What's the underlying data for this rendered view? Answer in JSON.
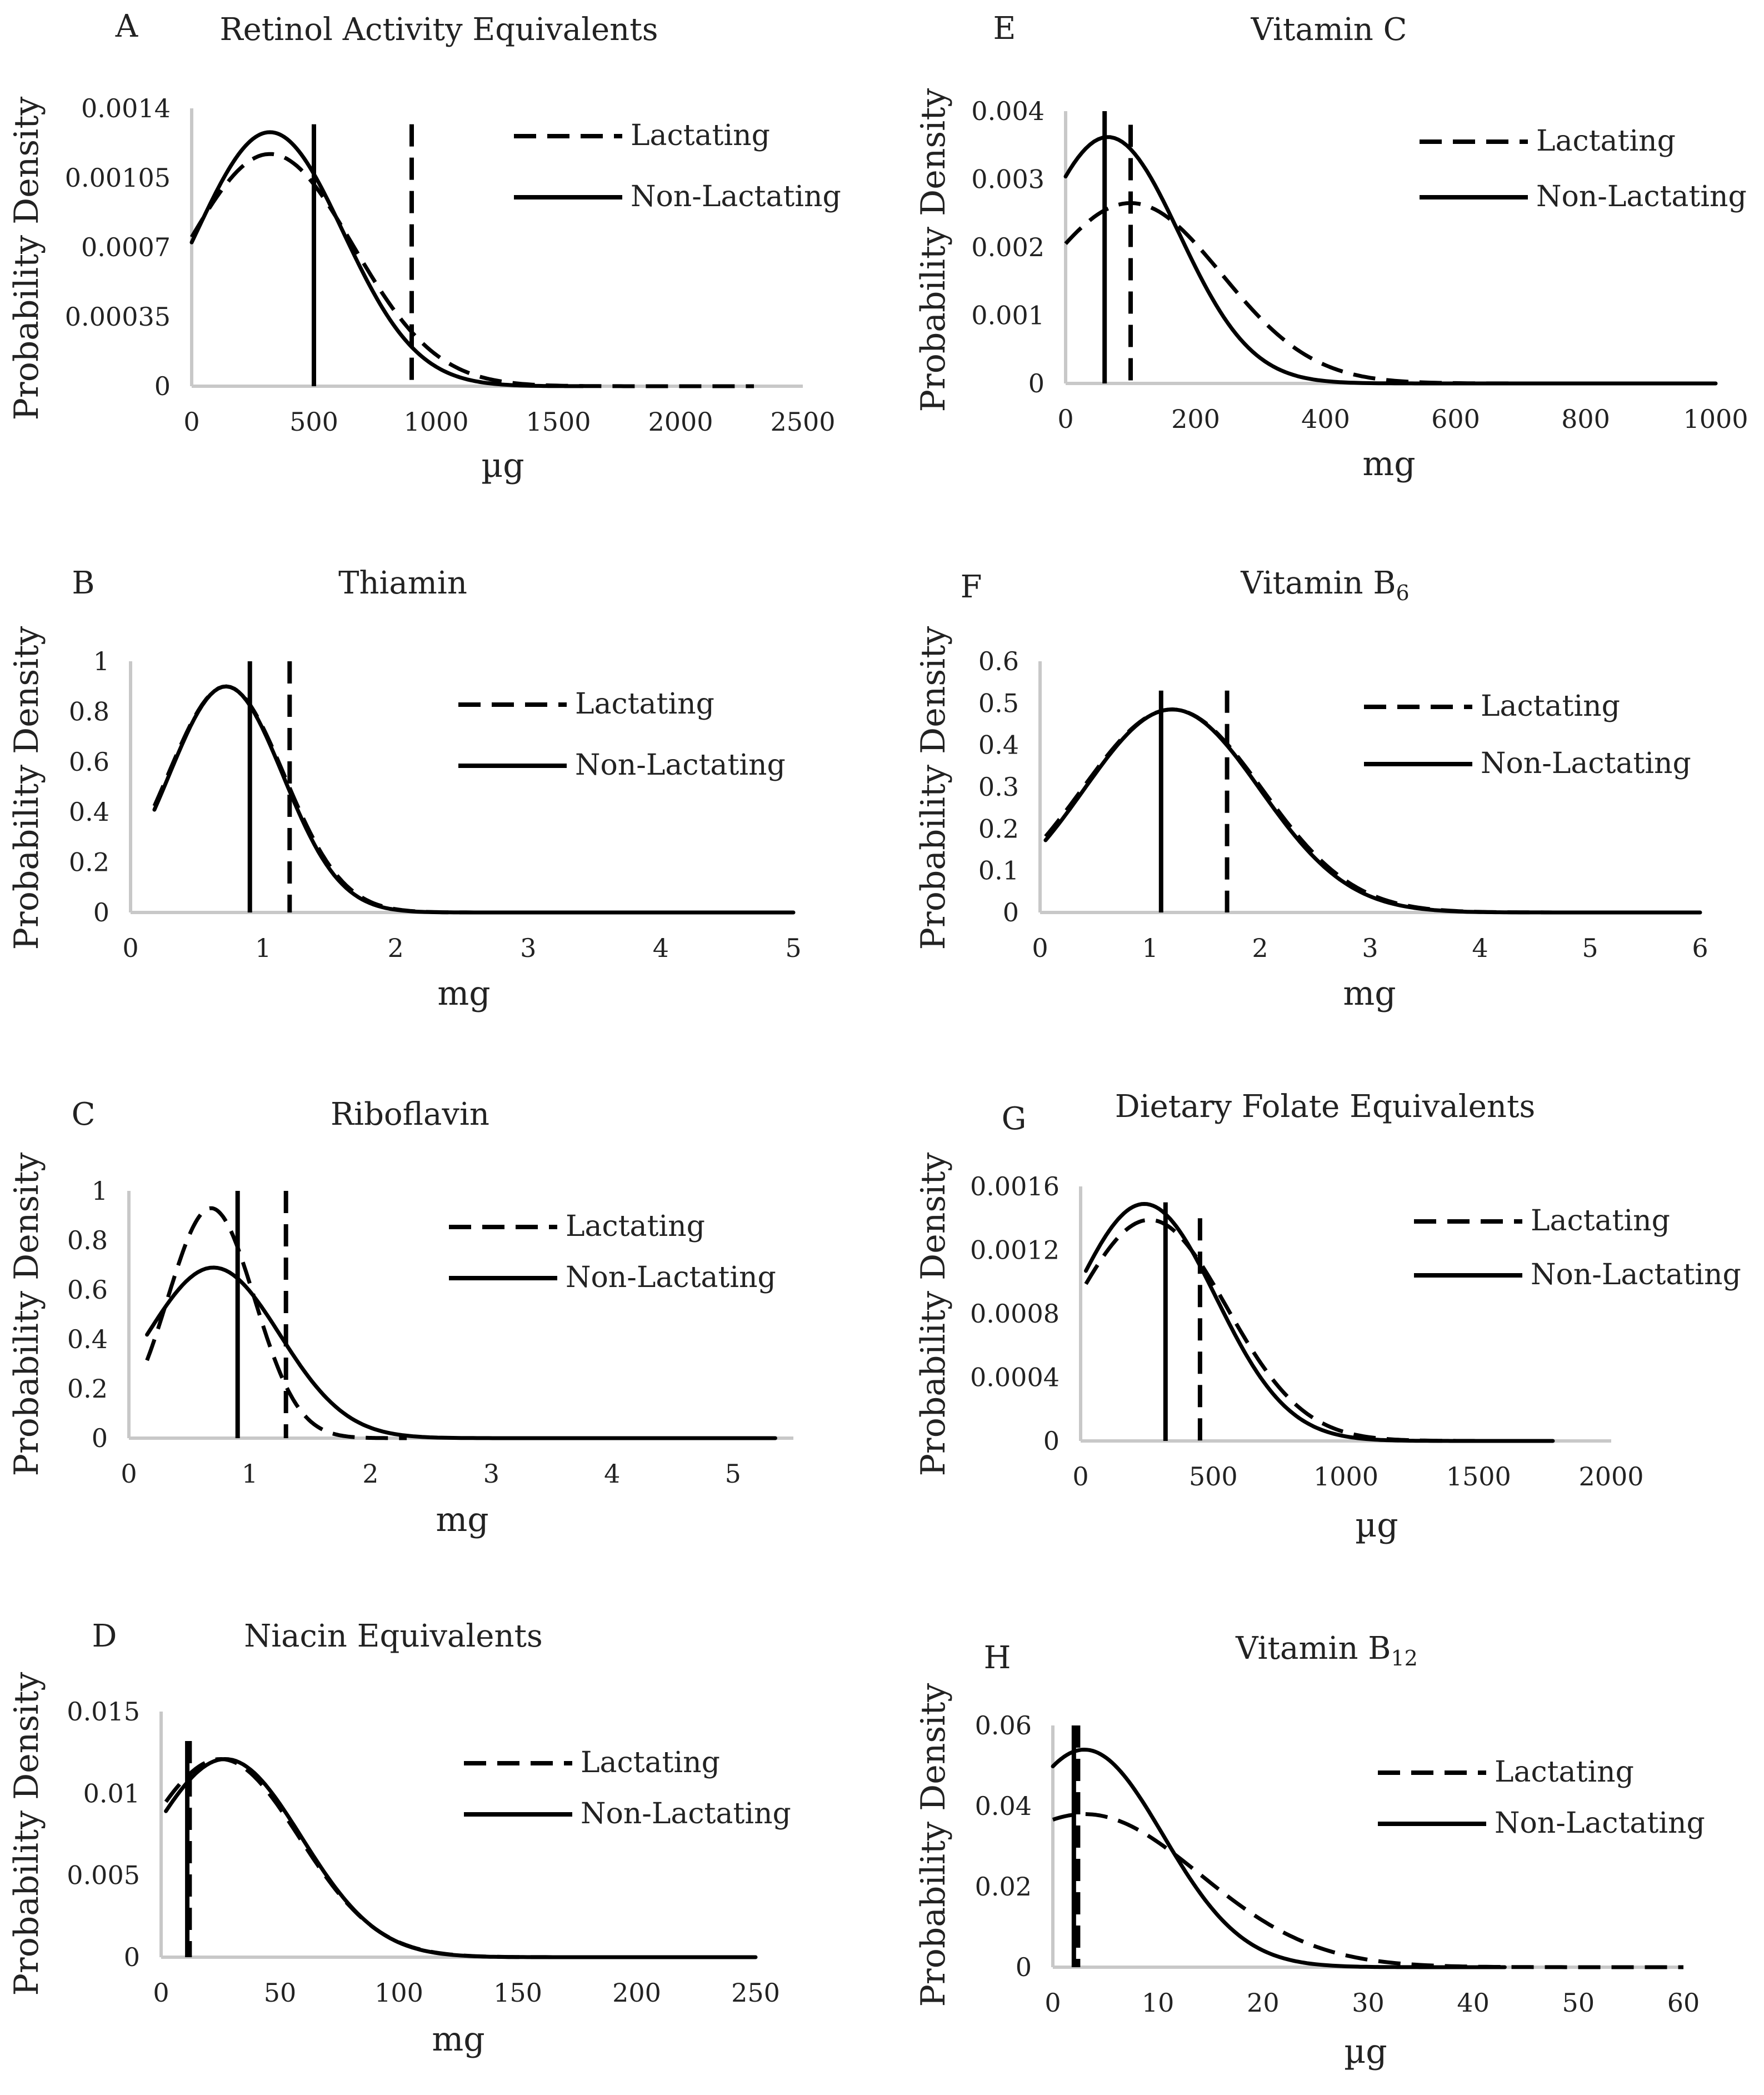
{
  "ylabel": "Probability Density",
  "legend": {
    "lactating": "Lactating",
    "non_lactating": "Non-Lactating"
  },
  "chart_data": [
    {
      "letter": "A",
      "title": "Retinol Activity Equivalents",
      "title_sub": "",
      "type": "line",
      "xlabel": "µg",
      "ylabel": "Probability Density",
      "xlim": [
        0,
        2500
      ],
      "ylim": [
        0,
        0.0014
      ],
      "xticks": [
        0,
        500,
        1000,
        1500,
        2000,
        2500
      ],
      "xtick_labels": [
        "0",
        "500",
        "1000",
        "1500",
        "2000",
        "2500"
      ],
      "yticks": [
        0,
        0.00035,
        0.0007,
        0.00105,
        0.0014
      ],
      "ytick_labels": [
        "0",
        "0.00035",
        "0.0007",
        "0.00105",
        "0.0014"
      ],
      "series": [
        {
          "name": "Lactating",
          "style": "dashed",
          "mu": 320,
          "sigma": 340,
          "peak": 0.00117,
          "x_range": [
            0,
            2300
          ]
        },
        {
          "name": "Non-Lactating",
          "style": "solid",
          "mu": 320,
          "sigma": 300,
          "peak": 0.00128,
          "x_range": [
            0,
            1600
          ]
        }
      ],
      "vlines": [
        {
          "series": "Lactating",
          "style": "dashed",
          "x": 900,
          "y_top": 0.00132
        },
        {
          "series": "Non-Lactating",
          "style": "solid",
          "x": 500,
          "y_top": 0.00132
        }
      ]
    },
    {
      "letter": "B",
      "title": "Thiamin",
      "title_sub": "",
      "type": "line",
      "xlabel": "mg",
      "ylabel": "Probability Density",
      "xlim": [
        0,
        5
      ],
      "ylim": [
        0,
        1
      ],
      "xticks": [
        0,
        1,
        2,
        3,
        4,
        5
      ],
      "xtick_labels": [
        "0",
        "1",
        "2",
        "3",
        "4",
        "5"
      ],
      "yticks": [
        0,
        0.2,
        0.4,
        0.6,
        0.8,
        1
      ],
      "ytick_labels": [
        "0",
        "0.2",
        "0.4",
        "0.6",
        "0.8",
        "1"
      ],
      "series": [
        {
          "name": "Lactating",
          "style": "dashed",
          "mu": 0.72,
          "sigma": 0.44,
          "peak": 0.9,
          "x_range": [
            0.18,
            5
          ]
        },
        {
          "name": "Non-Lactating",
          "style": "solid",
          "mu": 0.72,
          "sigma": 0.43,
          "peak": 0.9,
          "x_range": [
            0.18,
            5
          ]
        }
      ],
      "vlines": [
        {
          "series": "Lactating",
          "style": "dashed",
          "x": 1.2,
          "y_top": 1.0
        },
        {
          "series": "Non-Lactating",
          "style": "solid",
          "x": 0.9,
          "y_top": 1.0
        }
      ]
    },
    {
      "letter": "C",
      "title": "Riboflavin",
      "title_sub": "",
      "type": "line",
      "xlabel": "mg",
      "ylabel": "Probability Density",
      "xlim": [
        0,
        5.5
      ],
      "ylim": [
        0,
        1
      ],
      "xticks": [
        0,
        1,
        2,
        3,
        4,
        5
      ],
      "xtick_labels": [
        "0",
        "1",
        "2",
        "3",
        "4",
        "5"
      ],
      "yticks": [
        0,
        0.2,
        0.4,
        0.6,
        0.8,
        1
      ],
      "ytick_labels": [
        "0",
        "0.2",
        "0.4",
        "0.6",
        "0.8",
        "1"
      ],
      "series": [
        {
          "name": "Lactating",
          "style": "dashed",
          "mu": 0.68,
          "sigma": 0.36,
          "peak": 0.93,
          "x_range": [
            0.15,
            2.3
          ]
        },
        {
          "name": "Non-Lactating",
          "style": "solid",
          "mu": 0.7,
          "sigma": 0.55,
          "peak": 0.69,
          "x_range": [
            0.15,
            5.35
          ]
        }
      ],
      "vlines": [
        {
          "series": "Lactating",
          "style": "dashed",
          "x": 1.3,
          "y_top": 1.0
        },
        {
          "series": "Non-Lactating",
          "style": "solid",
          "x": 0.9,
          "y_top": 1.0
        }
      ]
    },
    {
      "letter": "D",
      "title": "Niacin Equivalents",
      "title_sub": "",
      "type": "line",
      "xlabel": "mg",
      "ylabel": "Probability Density",
      "xlim": [
        0,
        250
      ],
      "ylim": [
        0,
        0.015
      ],
      "xticks": [
        0,
        50,
        100,
        150,
        200,
        250
      ],
      "xtick_labels": [
        "0",
        "50",
        "100",
        "150",
        "200",
        "250"
      ],
      "yticks": [
        0,
        0.005,
        0.01,
        0.015
      ],
      "ytick_labels": [
        "0",
        "0.005",
        "0.01",
        "0.015"
      ],
      "series": [
        {
          "name": "Lactating",
          "style": "dashed",
          "mu": 25,
          "sigma": 33,
          "peak": 0.0121,
          "x_range": [
            2,
            250
          ]
        },
        {
          "name": "Non-Lactating",
          "style": "solid",
          "mu": 27,
          "sigma": 32,
          "peak": 0.0121,
          "x_range": [
            2,
            250
          ]
        }
      ],
      "vlines": [
        {
          "series": "Lactating",
          "style": "dashed",
          "x": 12,
          "y_top": 0.0132
        },
        {
          "series": "Non-Lactating",
          "style": "solid",
          "x": 11,
          "y_top": 0.0132
        }
      ]
    },
    {
      "letter": "E",
      "title": "Vitamin C",
      "title_sub": "",
      "type": "line",
      "xlabel": "mg",
      "ylabel": "Probability Density",
      "xlim": [
        0,
        1000
      ],
      "ylim": [
        0,
        0.004
      ],
      "xticks": [
        0,
        200,
        400,
        600,
        800,
        1000
      ],
      "xtick_labels": [
        "0",
        "200",
        "400",
        "600",
        "800",
        "1000"
      ],
      "yticks": [
        0,
        0.001,
        0.002,
        0.003,
        0.004
      ],
      "ytick_labels": [
        "0",
        "0.001",
        "0.002",
        "0.003",
        "0.004"
      ],
      "series": [
        {
          "name": "Lactating",
          "style": "dashed",
          "mu": 100,
          "sigma": 140,
          "peak": 0.00265,
          "x_range": [
            0,
            1000
          ]
        },
        {
          "name": "Non-Lactating",
          "style": "solid",
          "mu": 65,
          "sigma": 110,
          "peak": 0.00362,
          "x_range": [
            0,
            1000
          ]
        }
      ],
      "vlines": [
        {
          "series": "Lactating",
          "style": "dashed",
          "x": 100,
          "y_top": 0.0038
        },
        {
          "series": "Non-Lactating",
          "style": "solid",
          "x": 60,
          "y_top": 0.004
        }
      ]
    },
    {
      "letter": "F",
      "title": "Vitamin B",
      "title_sub": "6",
      "type": "line",
      "xlabel": "mg",
      "ylabel": "Probability Density",
      "xlim": [
        0,
        6
      ],
      "ylim": [
        0,
        0.6
      ],
      "xticks": [
        0,
        1,
        2,
        3,
        4,
        5,
        6
      ],
      "xtick_labels": [
        "0",
        "1",
        "2",
        "3",
        "4",
        "5",
        "6"
      ],
      "yticks": [
        0,
        0.1,
        0.2,
        0.3,
        0.4,
        0.5,
        0.6
      ],
      "ytick_labels": [
        "0",
        "0.1",
        "0.2",
        "0.3",
        "0.4",
        "0.5",
        "0.6"
      ],
      "series": [
        {
          "name": "Lactating",
          "style": "dashed",
          "mu": 1.2,
          "sigma": 0.82,
          "peak": 0.485,
          "x_range": [
            0.05,
            6
          ]
        },
        {
          "name": "Non-Lactating",
          "style": "solid",
          "mu": 1.2,
          "sigma": 0.8,
          "peak": 0.485,
          "x_range": [
            0.05,
            6
          ]
        }
      ],
      "vlines": [
        {
          "series": "Lactating",
          "style": "dashed",
          "x": 1.7,
          "y_top": 0.53
        },
        {
          "series": "Non-Lactating",
          "style": "solid",
          "x": 1.1,
          "y_top": 0.53
        }
      ]
    },
    {
      "letter": "G",
      "title": "Dietary Folate Equivalents",
      "title_sub": "",
      "type": "line",
      "xlabel": "µg",
      "ylabel": "Probability Density",
      "xlim": [
        0,
        2000
      ],
      "ylim": [
        0,
        0.0016
      ],
      "xticks": [
        0,
        500,
        1000,
        1500,
        2000
      ],
      "xtick_labels": [
        "0",
        "500",
        "1000",
        "1500",
        "2000"
      ],
      "yticks": [
        0,
        0.0004,
        0.0008,
        0.0012,
        0.0016
      ],
      "ytick_labels": [
        "0",
        "0.0004",
        "0.0008",
        "0.0012",
        "0.0016"
      ],
      "series": [
        {
          "name": "Lactating",
          "style": "dashed",
          "mu": 260,
          "sigma": 290,
          "peak": 0.00139,
          "x_range": [
            20,
            1780
          ]
        },
        {
          "name": "Non-Lactating",
          "style": "solid",
          "mu": 240,
          "sigma": 270,
          "peak": 0.00149,
          "x_range": [
            20,
            1780
          ]
        }
      ],
      "vlines": [
        {
          "series": "Lactating",
          "style": "dashed",
          "x": 450,
          "y_top": 0.0014
        },
        {
          "series": "Non-Lactating",
          "style": "solid",
          "x": 320,
          "y_top": 0.0015
        }
      ]
    },
    {
      "letter": "H",
      "title": "Vitamin B",
      "title_sub": "12",
      "type": "line",
      "xlabel": "µg",
      "ylabel": "Probability Density",
      "xlim": [
        0,
        60
      ],
      "ylim": [
        0,
        0.06
      ],
      "xticks": [
        0,
        10,
        20,
        30,
        40,
        50,
        60
      ],
      "xtick_labels": [
        "0",
        "10",
        "20",
        "30",
        "40",
        "50",
        "60"
      ],
      "yticks": [
        0,
        0.02,
        0.04,
        0.06
      ],
      "ytick_labels": [
        "0",
        "0.02",
        "0.04",
        "0.06"
      ],
      "series": [
        {
          "name": "Lactating",
          "style": "dashed",
          "mu": 3,
          "sigma": 11,
          "peak": 0.038,
          "x_range": [
            0,
            60
          ]
        },
        {
          "name": "Non-Lactating",
          "style": "solid",
          "mu": 3,
          "sigma": 7.5,
          "peak": 0.054,
          "x_range": [
            0,
            43
          ]
        }
      ],
      "vlines": [
        {
          "series": "Lactating",
          "style": "dashed",
          "x": 2.4,
          "y_top": 0.06
        },
        {
          "series": "Non-Lactating",
          "style": "solid",
          "x": 2.0,
          "y_top": 0.06
        }
      ]
    }
  ]
}
